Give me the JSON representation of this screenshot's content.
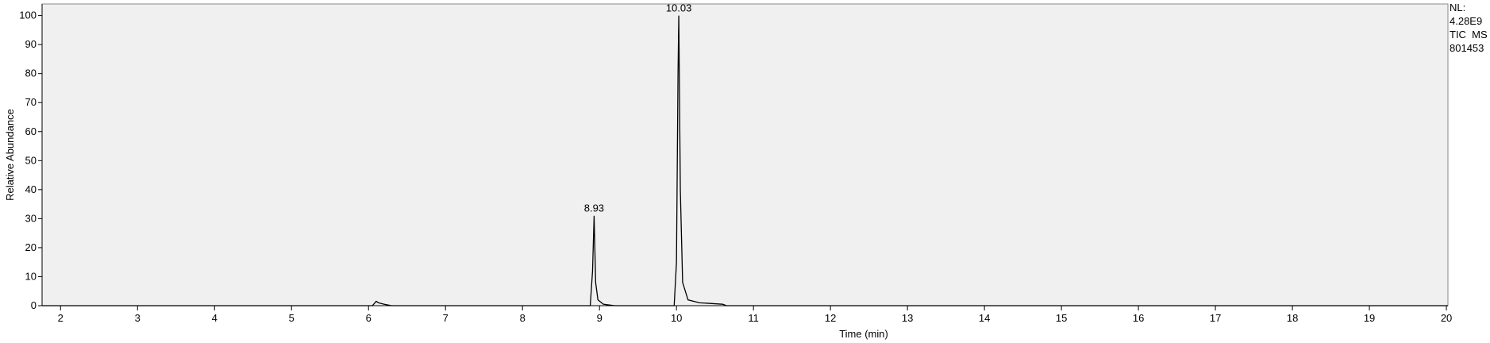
{
  "chart_data": {
    "type": "line",
    "x_label": "Time (min)",
    "y_label": "Relative Abundance",
    "info": [
      "NL:",
      "4.28E9",
      "TIC  MS",
      "801453"
    ],
    "series": [
      {
        "color": "#000000",
        "x": [
          1.76,
          6.05,
          6.1,
          6.13,
          6.2,
          6.3,
          8.88,
          8.91,
          8.93,
          8.95,
          8.98,
          9.05,
          9.2,
          9.97,
          10.0,
          10.02,
          10.03,
          10.05,
          10.08,
          10.15,
          10.3,
          10.6,
          10.65,
          20.02
        ],
        "values": [
          0,
          0,
          1.5,
          1.0,
          0.5,
          0,
          0,
          12,
          31,
          8,
          2,
          0.5,
          0,
          0,
          15,
          80,
          100,
          40,
          8,
          2,
          1,
          0.5,
          0,
          0
        ]
      }
    ],
    "peak_labels": [
      8.93,
      10.03
    ],
    "xlim": [
      1.76,
      20.02
    ],
    "ylim": [
      0,
      104
    ],
    "xticks": [
      2,
      3,
      4,
      5,
      6,
      7,
      8,
      9,
      10,
      11,
      12,
      13,
      14,
      15,
      16,
      17,
      18,
      19,
      20
    ],
    "yticks": [
      0,
      10,
      20,
      30,
      40,
      50,
      60,
      70,
      80,
      90,
      100
    ]
  }
}
